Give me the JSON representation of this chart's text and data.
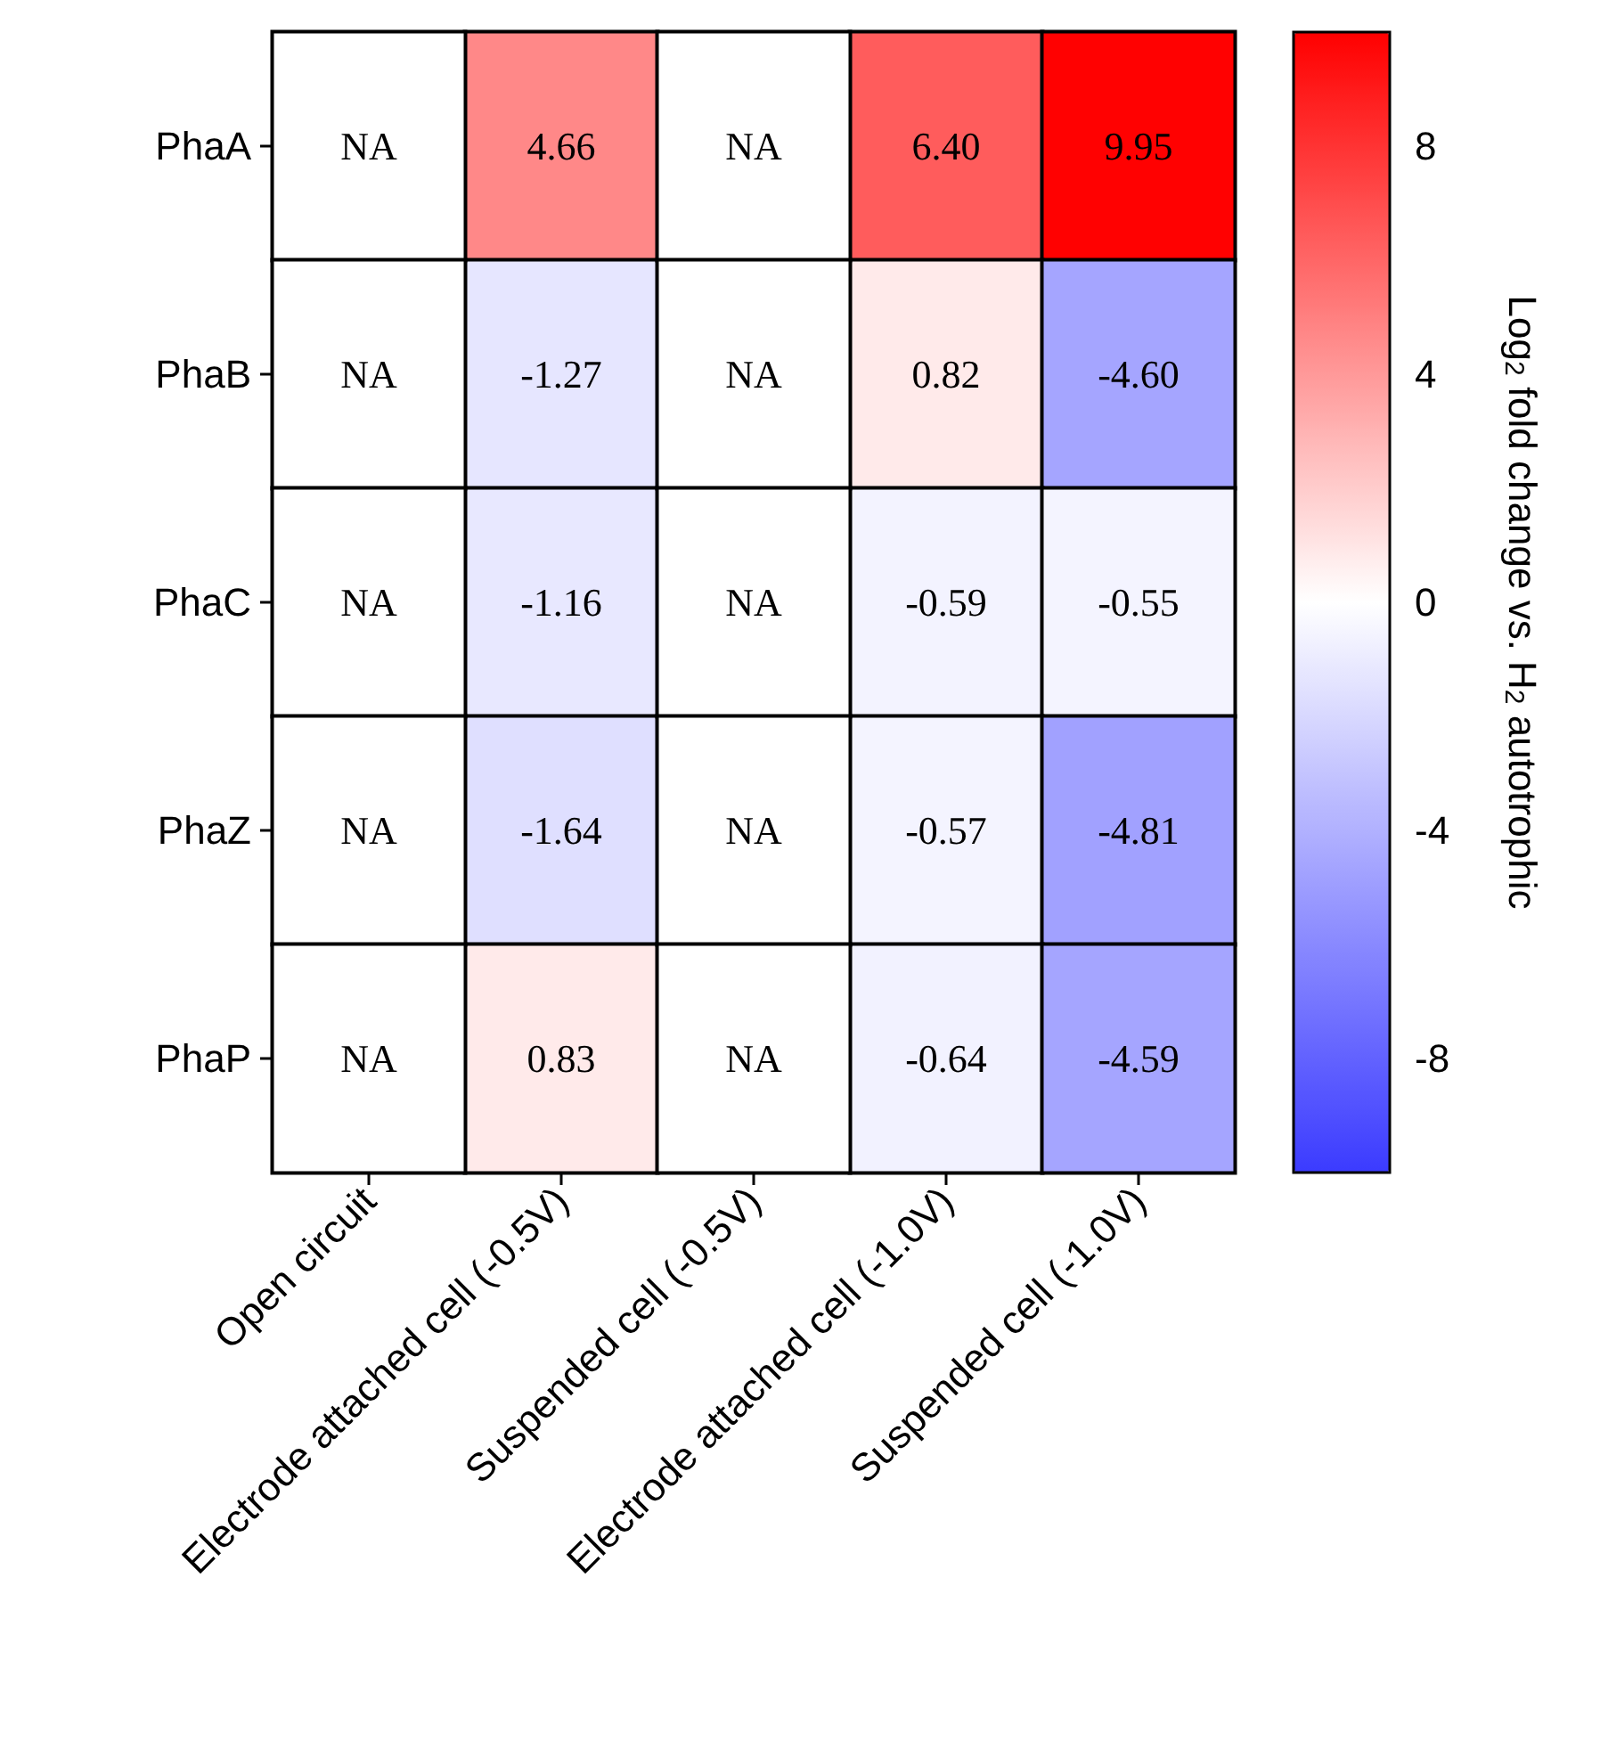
{
  "chart_data": {
    "type": "heatmap",
    "categories": [
      "Open circuit",
      "Electrode attached cell (-0.5V)",
      "Suspended cell (-0.5V)",
      "Electrode attached cell (-1.0V)",
      "Suspended cell (-1.0V)"
    ],
    "y_categories": [
      "PhaA",
      "PhaB",
      "PhaC",
      "PhaZ",
      "PhaP"
    ],
    "cells": [
      [
        null,
        4.66,
        null,
        6.4,
        9.95
      ],
      [
        null,
        -1.27,
        null,
        0.82,
        -4.6
      ],
      [
        null,
        -1.16,
        null,
        -0.59,
        -0.55
      ],
      [
        null,
        -1.64,
        null,
        -0.57,
        -4.81
      ],
      [
        null,
        0.83,
        null,
        -0.64,
        -4.59
      ]
    ],
    "cell_labels": [
      [
        "NA",
        "4.66",
        "NA",
        "6.40",
        "9.95"
      ],
      [
        "NA",
        "-1.27",
        "NA",
        "0.82",
        "-4.60"
      ],
      [
        "NA",
        "-1.16",
        "NA",
        "-0.59",
        "-0.55"
      ],
      [
        "NA",
        "-1.64",
        "NA",
        "-0.57",
        "-4.81"
      ],
      [
        "NA",
        "0.83",
        "NA",
        "-0.64",
        "-4.59"
      ]
    ],
    "clim": [
      -10,
      10
    ],
    "cticks": [
      -8,
      -4,
      0,
      4,
      8
    ],
    "clabel": "Log$_{2}$ fold change vs. H$_{2}$ autotrophic"
  }
}
